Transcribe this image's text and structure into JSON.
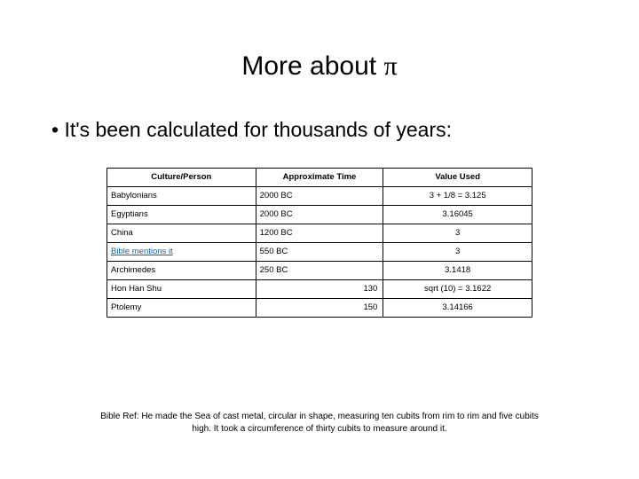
{
  "title_prefix": "More about ",
  "title_symbol": "π",
  "bullet": "It's been calculated for thousands of years:",
  "table": {
    "columns": [
      "Culture/Person",
      "Approximate Time",
      "Value Used"
    ],
    "col_widths": [
      "35%",
      "30%",
      "35%"
    ],
    "rows": [
      {
        "culture": "Babylonians",
        "time": "2000 BC",
        "time_align": "left",
        "value": "3 + 1/8 = 3.125",
        "link": false
      },
      {
        "culture": "Egyptians",
        "time": "2000 BC",
        "time_align": "left",
        "value": "3.16045",
        "link": false
      },
      {
        "culture": "China",
        "time": "1200 BC",
        "time_align": "left",
        "value": "3",
        "link": false
      },
      {
        "culture": "Bible mentions it",
        "time": "550 BC",
        "time_align": "left",
        "value": "3",
        "link": true
      },
      {
        "culture": "Archimedes",
        "time": "250 BC",
        "time_align": "left",
        "value": "3.1418",
        "link": false
      },
      {
        "culture": "Hon Han Shu",
        "time": "130",
        "time_align": "right",
        "value": "sqrt (10) = 3.1622",
        "link": false
      },
      {
        "culture": "Ptolemy",
        "time": "150",
        "time_align": "right",
        "value": "3.14166",
        "link": false
      }
    ]
  },
  "footnote": "Bible Ref: He made the Sea of cast metal, circular in shape, measuring ten cubits from rim to rim and five cubits high. It took a circumference of thirty cubits to measure around it.",
  "colors": {
    "background": "#ffffff",
    "text": "#000000",
    "border": "#000000",
    "link": "#0066cc"
  },
  "fonts": {
    "title_size": 30,
    "body_size": 23,
    "table_size": 9.5,
    "footnote_size": 10
  }
}
